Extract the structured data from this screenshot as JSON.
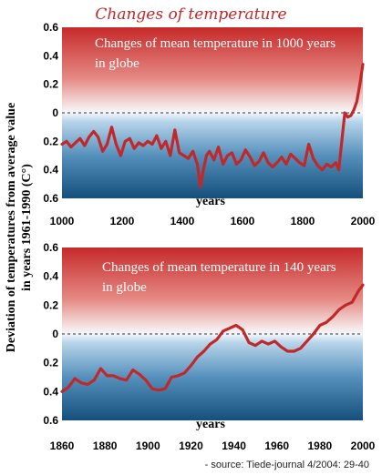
{
  "title": "Changes of temperature",
  "ylabel": [
    "Deviation of temperatures from average value",
    "in years 1961-1990 (C°)"
  ],
  "source": "- source: Tiede-journal 4/2004: 29-40",
  "colors": {
    "line": "#c0282a",
    "title": "#c0282a",
    "warm": "#c62a2a",
    "cold": "#154f7c"
  },
  "chart_data": [
    {
      "type": "line",
      "title": "Changes of mean temperature in 1000 years in globe",
      "xlabel": "years",
      "xlim": [
        1000,
        2000
      ],
      "ylim": [
        -0.6,
        0.6
      ],
      "x_ticks": [
        1000,
        1200,
        1400,
        1600,
        1800,
        2000
      ],
      "y_ticks": [
        0.6,
        0.4,
        0.2,
        0,
        0.2,
        0.4,
        0.6
      ],
      "series": [
        {
          "x": [
            1000,
            1015,
            1030,
            1045,
            1060,
            1075,
            1090,
            1105,
            1120,
            1135,
            1150,
            1165,
            1180,
            1195,
            1210,
            1225,
            1240,
            1255,
            1270,
            1285,
            1300,
            1315,
            1330,
            1345,
            1360,
            1375,
            1390,
            1405,
            1420,
            1435,
            1450,
            1460,
            1470,
            1480,
            1490,
            1505,
            1520,
            1535,
            1550,
            1565,
            1580,
            1595,
            1610,
            1625,
            1640,
            1655,
            1670,
            1685,
            1700,
            1715,
            1730,
            1745,
            1760,
            1775,
            1790,
            1805,
            1820,
            1835,
            1850,
            1865,
            1880,
            1895,
            1910,
            1920,
            1930,
            1940,
            1950,
            1960,
            1970,
            1980,
            1990,
            2000
          ],
          "y": [
            -0.22,
            -0.2,
            -0.24,
            -0.21,
            -0.18,
            -0.23,
            -0.17,
            -0.13,
            -0.17,
            -0.27,
            -0.22,
            -0.1,
            -0.22,
            -0.3,
            -0.2,
            -0.18,
            -0.25,
            -0.21,
            -0.23,
            -0.2,
            -0.22,
            -0.16,
            -0.25,
            -0.2,
            -0.3,
            -0.12,
            -0.28,
            -0.3,
            -0.32,
            -0.27,
            -0.36,
            -0.52,
            -0.4,
            -0.3,
            -0.27,
            -0.33,
            -0.24,
            -0.36,
            -0.3,
            -0.28,
            -0.36,
            -0.33,
            -0.26,
            -0.31,
            -0.37,
            -0.34,
            -0.28,
            -0.35,
            -0.38,
            -0.35,
            -0.31,
            -0.36,
            -0.29,
            -0.32,
            -0.35,
            -0.37,
            -0.22,
            -0.32,
            -0.37,
            -0.4,
            -0.36,
            -0.38,
            -0.35,
            -0.4,
            -0.2,
            0.0,
            -0.03,
            -0.02,
            0.02,
            0.08,
            0.2,
            0.34
          ]
        }
      ]
    },
    {
      "type": "line",
      "title": "Changes of mean temperature in 140 years in globe",
      "xlabel": "years",
      "xlim": [
        1860,
        2000
      ],
      "ylim": [
        -0.6,
        0.6
      ],
      "x_ticks": [
        1860,
        1880,
        1900,
        1920,
        1940,
        1960,
        1980,
        2000
      ],
      "y_ticks": [
        0.6,
        0.4,
        0.2,
        0,
        0.2,
        0.4,
        0.6
      ],
      "series": [
        {
          "x": [
            1860,
            1863,
            1866,
            1869,
            1872,
            1875,
            1878,
            1881,
            1884,
            1887,
            1890,
            1893,
            1896,
            1899,
            1902,
            1905,
            1908,
            1911,
            1914,
            1917,
            1920,
            1923,
            1926,
            1929,
            1932,
            1935,
            1938,
            1941,
            1944,
            1947,
            1950,
            1953,
            1956,
            1959,
            1962,
            1965,
            1968,
            1971,
            1974,
            1977,
            1980,
            1983,
            1986,
            1989,
            1992,
            1995,
            1998,
            2000
          ],
          "y": [
            -0.4,
            -0.37,
            -0.31,
            -0.34,
            -0.35,
            -0.32,
            -0.24,
            -0.29,
            -0.29,
            -0.31,
            -0.32,
            -0.25,
            -0.28,
            -0.32,
            -0.38,
            -0.39,
            -0.38,
            -0.3,
            -0.29,
            -0.27,
            -0.22,
            -0.16,
            -0.12,
            -0.07,
            -0.04,
            0.02,
            0.04,
            0.06,
            0.03,
            -0.06,
            -0.08,
            -0.05,
            -0.07,
            -0.05,
            -0.09,
            -0.12,
            -0.12,
            -0.1,
            -0.05,
            0.0,
            0.06,
            0.08,
            0.12,
            0.17,
            0.2,
            0.22,
            0.3,
            0.34
          ]
        }
      ]
    }
  ]
}
